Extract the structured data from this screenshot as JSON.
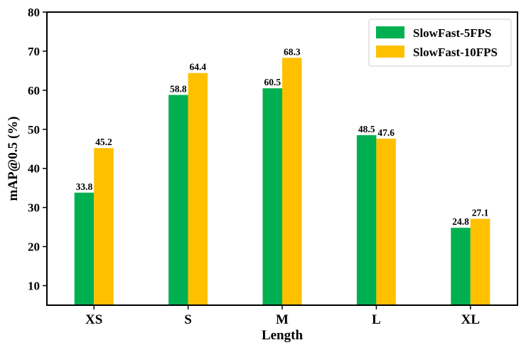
{
  "chart_data": {
    "type": "bar",
    "categories": [
      "XS",
      "S",
      "M",
      "L",
      "XL"
    ],
    "series": [
      {
        "name": "SlowFast-5FPS",
        "color": "#00b050",
        "values": [
          33.8,
          58.8,
          60.5,
          48.5,
          24.8
        ]
      },
      {
        "name": "SlowFast-10FPS",
        "color": "#ffc000",
        "values": [
          45.2,
          64.4,
          68.3,
          47.6,
          27.1
        ]
      }
    ],
    "value_labels": {
      "SlowFast-5FPS": [
        "33.8",
        "58.8",
        "60.5",
        "48.5",
        "24.8"
      ],
      "SlowFast-10FPS": [
        "45.2",
        "64.4",
        "68.3",
        "47.6",
        "27.1"
      ]
    },
    "xlabel": "Length",
    "ylabel": "mAP@0.5 (%)",
    "ylim": [
      5,
      80
    ],
    "yticks": [
      10,
      20,
      30,
      40,
      50,
      60,
      70,
      80
    ],
    "ytick_labels": [
      "10",
      "20",
      "30",
      "40",
      "50",
      "60",
      "70",
      "80"
    ],
    "grid": false,
    "legend_position": "top-right"
  }
}
